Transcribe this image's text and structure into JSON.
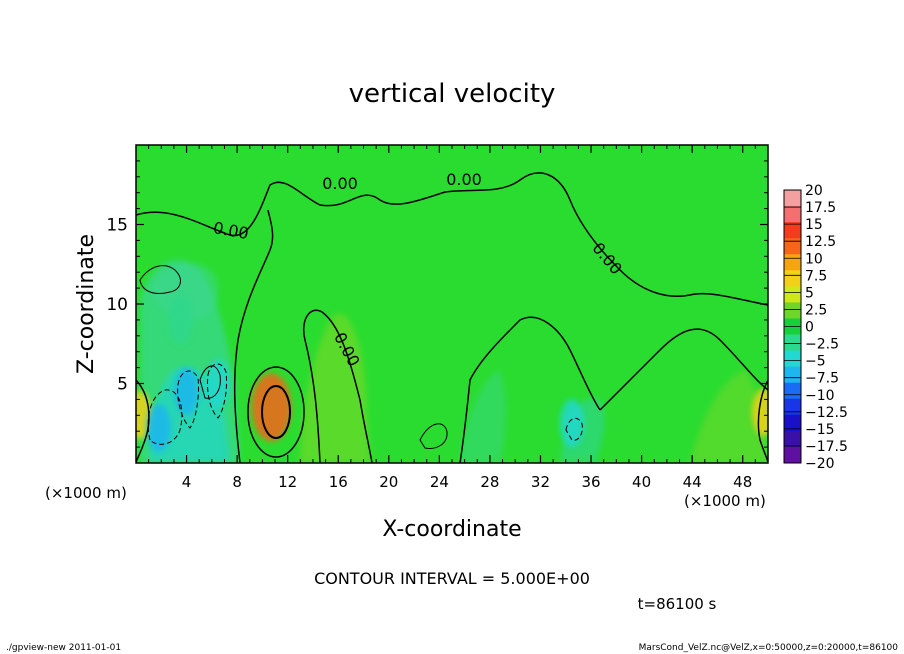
{
  "chart_data": {
    "type": "heatmap",
    "title": "vertical velocity",
    "xlabel": "X-coordinate",
    "ylabel": "Z-coordinate",
    "x_unit_label": "(×1000 m)",
    "x_unit_label_left": "(×1000 m)",
    "xlim": [
      0,
      50
    ],
    "ylim": [
      0,
      20
    ],
    "x_ticks": [
      "4",
      "8",
      "12",
      "16",
      "20",
      "24",
      "28",
      "32",
      "36",
      "40",
      "44",
      "48"
    ],
    "x_tick_values": [
      4,
      8,
      12,
      16,
      20,
      24,
      28,
      32,
      36,
      40,
      44,
      48
    ],
    "y_ticks": [
      "5",
      "10",
      "15"
    ],
    "y_tick_values": [
      5,
      10,
      15
    ],
    "colorbar": {
      "labels": [
        "20",
        "17.5",
        "15",
        "12.5",
        "10",
        "7.5",
        "5",
        "2.5",
        "0",
        "−2.5",
        "−5",
        "−7.5",
        "−10",
        "−12.5",
        "−15",
        "−17.5",
        "−20"
      ],
      "colors": [
        "#f4a0a0",
        "#f47070",
        "#f23c1e",
        "#f5651a",
        "#f5a50f",
        "#f2d218",
        "#cfe81a",
        "#6ed62a",
        "#18cf3c",
        "#2ed88c",
        "#22d8d0",
        "#1fb6f0",
        "#1b6cf5",
        "#1a34e8",
        "#1a10c8",
        "#3a10a8",
        "#6010a0"
      ]
    },
    "background_field_color": "#2adc30",
    "contour_labels": [
      "0.00",
      "0.00",
      "0.00",
      "0.00",
      "0.00"
    ],
    "features": [
      {
        "x": 10.7,
        "z": 3.5,
        "value": 12.5
      },
      {
        "x": 0.3,
        "z": 3.0,
        "value": 7.5
      },
      {
        "x": 49.7,
        "z": 3.2,
        "value": 7.5
      },
      {
        "x": 1.8,
        "z": 2.2,
        "value": -7.5
      },
      {
        "x": 4.0,
        "z": 4.5,
        "value": -7.5
      },
      {
        "x": 6.5,
        "z": 5.0,
        "value": -5
      },
      {
        "x": 34.5,
        "z": 2.5,
        "value": -5
      },
      {
        "x": 3.5,
        "z": 9.0,
        "value": -2.5
      }
    ],
    "contour_interval_text": "CONTOUR INTERVAL = 5.000E+00",
    "time_text": "t=86100 s"
  },
  "footer": {
    "left": "./gpview-new  2011-01-01",
    "right": "MarsCond_VelZ.nc@VelZ,x=0:50000,z=0:20000,t=86100"
  }
}
